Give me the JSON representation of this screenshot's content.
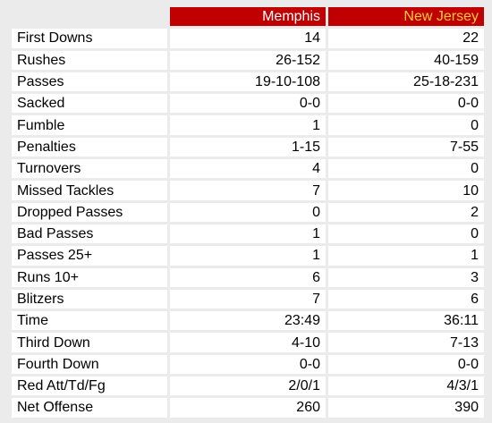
{
  "colors": {
    "header_bg": "#c00000",
    "home_text": "#ffffff",
    "away_text": "#ffcc33",
    "page_bg": "#ebebeb",
    "cell_bg": "#ffffff"
  },
  "teams": {
    "home": "Memphis",
    "away": "New Jersey"
  },
  "rows": [
    {
      "label": "First Downs",
      "home": "14",
      "away": "22"
    },
    {
      "label": "Rushes",
      "home": "26-152",
      "away": "40-159"
    },
    {
      "label": "Passes",
      "home": "19-10-108",
      "away": "25-18-231"
    },
    {
      "label": "Sacked",
      "home": "0-0",
      "away": "0-0"
    },
    {
      "label": "Fumble",
      "home": "1",
      "away": "0"
    },
    {
      "label": "Penalties",
      "home": "1-15",
      "away": "7-55"
    },
    {
      "label": "Turnovers",
      "home": "4",
      "away": "0"
    },
    {
      "label": "Missed Tackles",
      "home": "7",
      "away": "10"
    },
    {
      "label": "Dropped Passes",
      "home": "0",
      "away": "2"
    },
    {
      "label": "Bad Passes",
      "home": "1",
      "away": "0"
    },
    {
      "label": "Passes 25+",
      "home": "1",
      "away": "1"
    },
    {
      "label": "Runs 10+",
      "home": "6",
      "away": "3"
    },
    {
      "label": "Blitzers",
      "home": "7",
      "away": "6"
    },
    {
      "label": "Time",
      "home": "23:49",
      "away": "36:11"
    },
    {
      "label": "Third Down",
      "home": "4-10",
      "away": "7-13"
    },
    {
      "label": "Fourth Down",
      "home": "0-0",
      "away": "0-0"
    },
    {
      "label": "Red Att/Td/Fg",
      "home": "2/0/1",
      "away": "4/3/1"
    },
    {
      "label": "Net Offense",
      "home": "260",
      "away": "390"
    }
  ]
}
